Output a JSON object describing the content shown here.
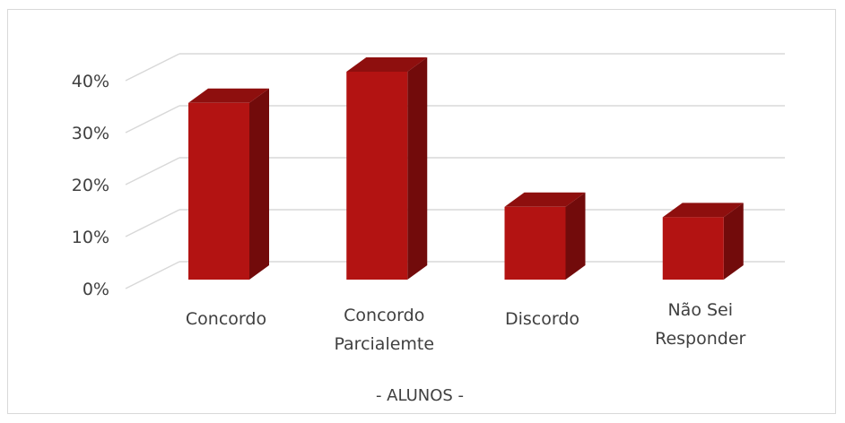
{
  "chart_data": {
    "type": "bar",
    "categories": [
      [
        "Concordo"
      ],
      [
        "Concordo",
        "Parcialemte"
      ],
      [
        "Discordo"
      ],
      [
        "Não Sei",
        "Responder"
      ]
    ],
    "values": [
      34,
      40,
      14,
      12
    ],
    "ylim": [
      0,
      40
    ],
    "yticks": [
      "0%",
      "10%",
      "20%",
      "30%",
      "40%"
    ],
    "xlabel": "- ALUNOS -",
    "grid": true,
    "three_d": true,
    "colors": {
      "front": "#b31312",
      "side": "#720b0b",
      "top": "#8e0f0e",
      "grid": "#d9d9d9"
    }
  }
}
